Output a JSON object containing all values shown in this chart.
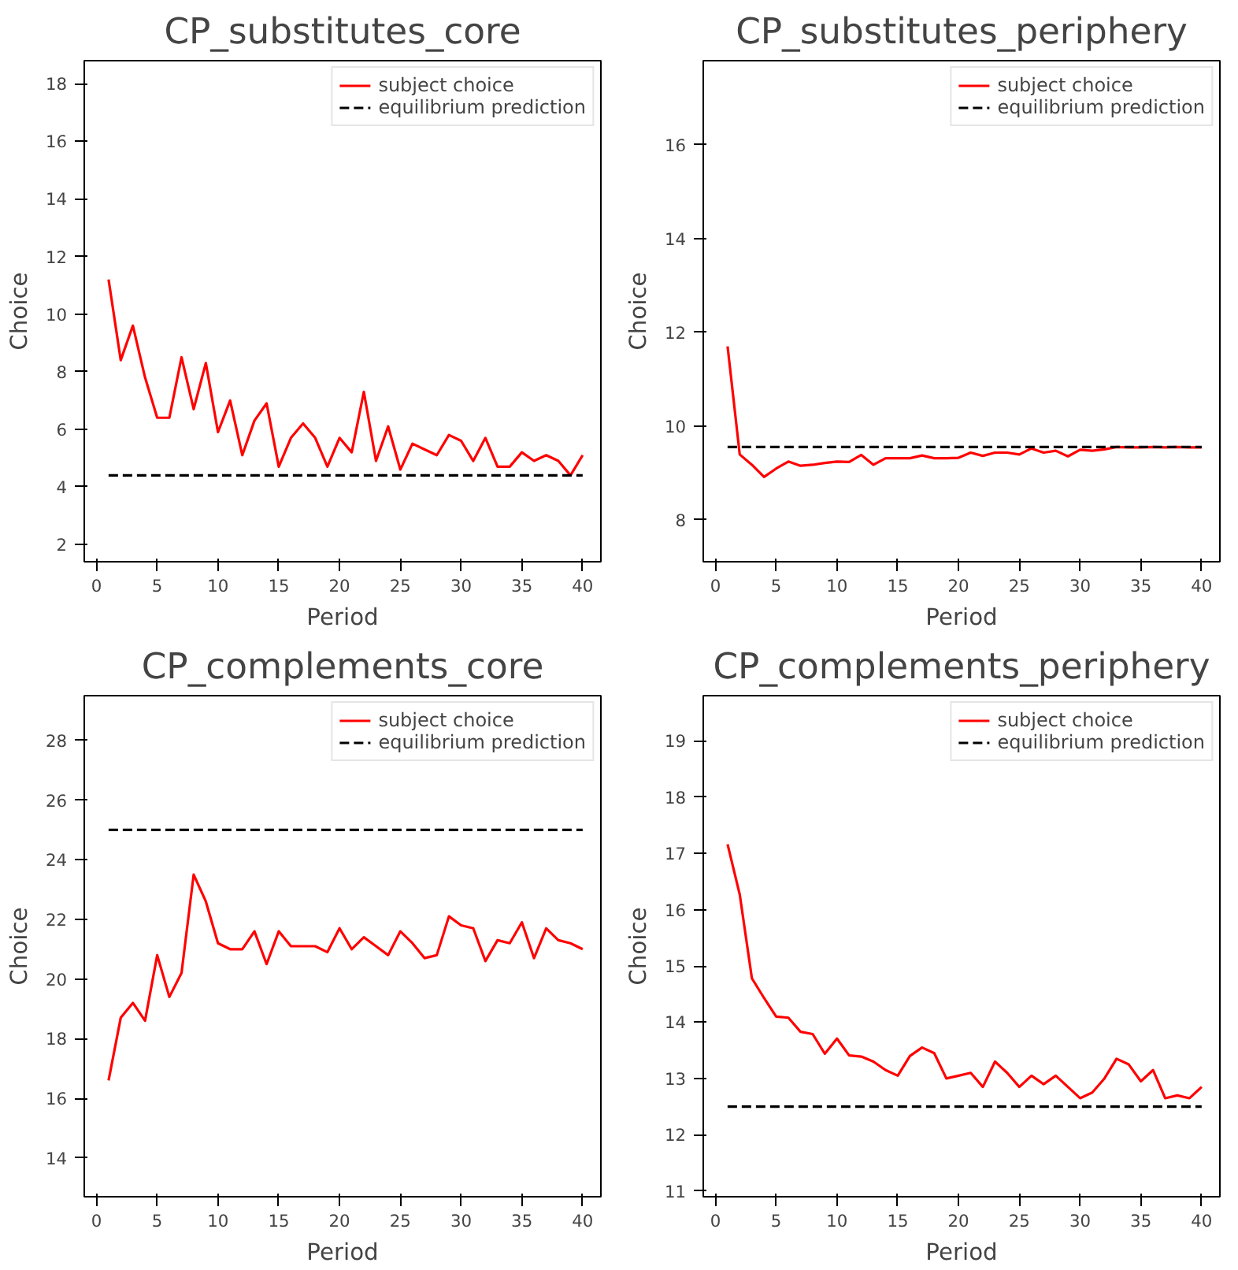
{
  "chart_data": [
    {
      "type": "line",
      "title": "CP_substitutes_core",
      "xlabel": "Period",
      "ylabel": "Choice",
      "x": [
        1,
        2,
        3,
        4,
        5,
        6,
        7,
        8,
        9,
        10,
        11,
        12,
        13,
        14,
        15,
        16,
        17,
        18,
        19,
        20,
        21,
        22,
        23,
        24,
        25,
        26,
        27,
        28,
        29,
        30,
        31,
        32,
        33,
        34,
        35,
        36,
        37,
        38,
        39,
        40
      ],
      "xlim": [
        -1,
        41.5
      ],
      "xticks": [
        0,
        5,
        10,
        15,
        20,
        25,
        30,
        35,
        40
      ],
      "ylim": [
        1.4,
        18.8
      ],
      "yticks": [
        2,
        4,
        6,
        8,
        10,
        12,
        14,
        16,
        18
      ],
      "grid": false,
      "legend": "top right",
      "marker": "none",
      "series": [
        {
          "name": "subject choice",
          "color": "#ff0000",
          "line_style": "solid",
          "values": [
            11.2,
            8.4,
            9.6,
            7.8,
            6.4,
            6.4,
            8.5,
            6.7,
            8.3,
            5.9,
            7.0,
            5.1,
            6.3,
            6.9,
            4.7,
            5.7,
            6.2,
            5.7,
            4.7,
            5.7,
            5.2,
            7.3,
            4.9,
            6.1,
            4.6,
            5.5,
            5.3,
            5.1,
            5.8,
            5.6,
            4.9,
            5.7,
            4.7,
            4.7,
            5.2,
            4.9,
            5.1,
            4.9,
            4.4,
            5.1
          ]
        },
        {
          "name": "equilibrium prediction",
          "color": "#000000",
          "line_style": "dashed",
          "values": [
            4.4,
            4.4,
            4.4,
            4.4,
            4.4,
            4.4,
            4.4,
            4.4,
            4.4,
            4.4,
            4.4,
            4.4,
            4.4,
            4.4,
            4.4,
            4.4,
            4.4,
            4.4,
            4.4,
            4.4,
            4.4,
            4.4,
            4.4,
            4.4,
            4.4,
            4.4,
            4.4,
            4.4,
            4.4,
            4.4,
            4.4,
            4.4,
            4.4,
            4.4,
            4.4,
            4.4,
            4.4,
            4.4,
            4.4,
            4.4
          ]
        }
      ]
    },
    {
      "type": "line",
      "title": "CP_substitutes_periphery",
      "xlabel": "Period",
      "ylabel": "Choice",
      "x": [
        1,
        2,
        3,
        4,
        5,
        6,
        7,
        8,
        9,
        10,
        11,
        12,
        13,
        14,
        15,
        16,
        17,
        18,
        19,
        20,
        21,
        22,
        23,
        24,
        25,
        26,
        27,
        28,
        29,
        30,
        31,
        32,
        33,
        34,
        35,
        36,
        37,
        38,
        39,
        40
      ],
      "xlim": [
        -1,
        41.5
      ],
      "xticks": [
        0,
        5,
        10,
        15,
        20,
        25,
        30,
        35,
        40
      ],
      "ylim": [
        7.1,
        17.8
      ],
      "yticks": [
        8,
        10,
        12,
        14,
        16
      ],
      "grid": false,
      "legend": "top right",
      "marker": "none",
      "series": [
        {
          "name": "subject choice",
          "color": "#ff0000",
          "line_style": "solid",
          "values": [
            11.7,
            9.39,
            9.17,
            8.91,
            9.09,
            9.24,
            9.15,
            9.17,
            9.21,
            9.24,
            9.23,
            9.38,
            9.17,
            9.31,
            9.31,
            9.31,
            9.37,
            9.31,
            9.31,
            9.32,
            9.43,
            9.36,
            9.43,
            9.43,
            9.39,
            9.52,
            9.43,
            9.47,
            9.35,
            9.49,
            9.47,
            9.5,
            9.55,
            9.54,
            9.54,
            9.55,
            9.54,
            9.55,
            9.54,
            9.54
          ]
        },
        {
          "name": "equilibrium prediction",
          "color": "#000000",
          "line_style": "dashed",
          "values": [
            9.55,
            9.55,
            9.55,
            9.55,
            9.55,
            9.55,
            9.55,
            9.55,
            9.55,
            9.55,
            9.55,
            9.55,
            9.55,
            9.55,
            9.55,
            9.55,
            9.55,
            9.55,
            9.55,
            9.55,
            9.55,
            9.55,
            9.55,
            9.55,
            9.55,
            9.55,
            9.55,
            9.55,
            9.55,
            9.55,
            9.55,
            9.55,
            9.55,
            9.55,
            9.55,
            9.55,
            9.55,
            9.55,
            9.55,
            9.55
          ]
        }
      ]
    },
    {
      "type": "line",
      "title": "CP_complements_core",
      "xlabel": "Period",
      "ylabel": "Choice",
      "x": [
        1,
        2,
        3,
        4,
        5,
        6,
        7,
        8,
        9,
        10,
        11,
        12,
        13,
        14,
        15,
        16,
        17,
        18,
        19,
        20,
        21,
        22,
        23,
        24,
        25,
        26,
        27,
        28,
        29,
        30,
        31,
        32,
        33,
        34,
        35,
        36,
        37,
        38,
        39,
        40
      ],
      "xlim": [
        -1,
        41.5
      ],
      "xticks": [
        0,
        5,
        10,
        15,
        20,
        25,
        30,
        35,
        40
      ],
      "ylim": [
        12.7,
        29.5
      ],
      "yticks": [
        14,
        16,
        18,
        20,
        22,
        24,
        26,
        28
      ],
      "grid": false,
      "legend": "top right",
      "marker": "none",
      "series": [
        {
          "name": "subject choice",
          "color": "#ff0000",
          "line_style": "solid",
          "values": [
            16.6,
            18.7,
            19.2,
            18.6,
            20.8,
            19.4,
            20.2,
            23.5,
            22.6,
            21.2,
            21.0,
            21.0,
            21.6,
            20.5,
            21.6,
            21.1,
            21.1,
            21.1,
            20.9,
            21.7,
            21.0,
            21.4,
            21.1,
            20.8,
            21.6,
            21.2,
            20.7,
            20.8,
            22.1,
            21.8,
            21.7,
            20.6,
            21.3,
            21.2,
            21.9,
            20.7,
            21.7,
            21.3,
            21.2,
            21.0
          ]
        },
        {
          "name": "equilibrium prediction",
          "color": "#000000",
          "line_style": "dashed",
          "values": [
            25,
            25,
            25,
            25,
            25,
            25,
            25,
            25,
            25,
            25,
            25,
            25,
            25,
            25,
            25,
            25,
            25,
            25,
            25,
            25,
            25,
            25,
            25,
            25,
            25,
            25,
            25,
            25,
            25,
            25,
            25,
            25,
            25,
            25,
            25,
            25,
            25,
            25,
            25,
            25
          ]
        }
      ]
    },
    {
      "type": "line",
      "title": "CP_complements_periphery",
      "xlabel": "Period",
      "ylabel": "Choice",
      "x": [
        1,
        2,
        3,
        4,
        5,
        6,
        7,
        8,
        9,
        10,
        11,
        12,
        13,
        14,
        15,
        16,
        17,
        18,
        19,
        20,
        21,
        22,
        23,
        24,
        25,
        26,
        27,
        28,
        29,
        30,
        31,
        32,
        33,
        34,
        35,
        36,
        37,
        38,
        39,
        40
      ],
      "xlim": [
        -1,
        41.5
      ],
      "xticks": [
        0,
        5,
        10,
        15,
        20,
        25,
        30,
        35,
        40
      ],
      "ylim": [
        10.9,
        19.8
      ],
      "yticks": [
        11,
        12,
        13,
        14,
        15,
        16,
        17,
        18,
        19
      ],
      "grid": false,
      "legend": "top right",
      "marker": "none",
      "series": [
        {
          "name": "subject choice",
          "color": "#ff0000",
          "line_style": "solid",
          "values": [
            17.16,
            16.27,
            14.78,
            14.43,
            14.1,
            14.08,
            13.83,
            13.79,
            13.44,
            13.71,
            13.41,
            13.39,
            13.3,
            13.15,
            13.05,
            13.4,
            13.55,
            13.45,
            13.0,
            13.05,
            13.1,
            12.85,
            13.3,
            13.1,
            12.85,
            13.05,
            12.9,
            13.05,
            12.85,
            12.65,
            12.75,
            13.0,
            13.35,
            13.25,
            12.95,
            13.15,
            12.65,
            12.7,
            12.65,
            12.85
          ]
        },
        {
          "name": "equilibrium prediction",
          "color": "#000000",
          "line_style": "dashed",
          "values": [
            12.5,
            12.5,
            12.5,
            12.5,
            12.5,
            12.5,
            12.5,
            12.5,
            12.5,
            12.5,
            12.5,
            12.5,
            12.5,
            12.5,
            12.5,
            12.5,
            12.5,
            12.5,
            12.5,
            12.5,
            12.5,
            12.5,
            12.5,
            12.5,
            12.5,
            12.5,
            12.5,
            12.5,
            12.5,
            12.5,
            12.5,
            12.5,
            12.5,
            12.5,
            12.5,
            12.5,
            12.5,
            12.5,
            12.5,
            12.5
          ]
        }
      ]
    }
  ]
}
